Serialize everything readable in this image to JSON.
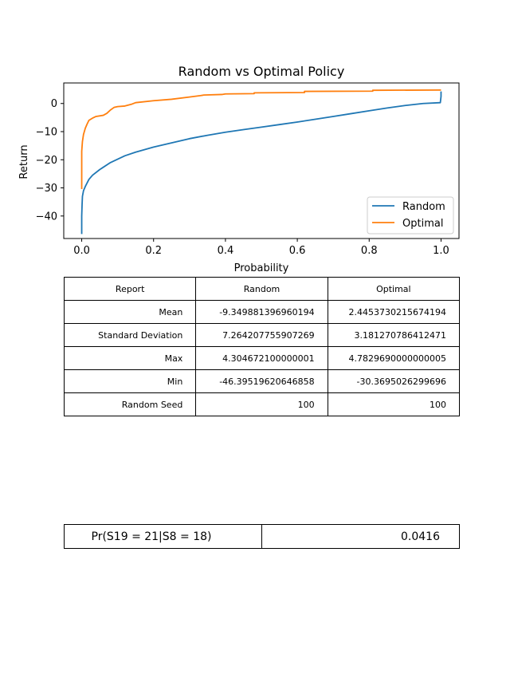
{
  "chart_data": {
    "type": "line",
    "title": "Random vs Optimal Policy",
    "xlabel": "Probability",
    "ylabel": "Return",
    "xlim": [
      -0.05,
      1.05
    ],
    "ylim": [
      -48.0,
      7.3
    ],
    "xticks": [
      "0.0",
      "0.2",
      "0.4",
      "0.6",
      "0.8",
      "1.0"
    ],
    "yticks": [
      "0",
      "-10",
      "-20",
      "-30",
      "-40"
    ],
    "legend_position": "lower-right",
    "series": [
      {
        "name": "Random",
        "color": "#1f77b4",
        "x": [
          0.0,
          0.0,
          0.001,
          0.002,
          0.005,
          0.01,
          0.02,
          0.03,
          0.05,
          0.08,
          0.1,
          0.12,
          0.15,
          0.2,
          0.25,
          0.3,
          0.35,
          0.4,
          0.45,
          0.5,
          0.55,
          0.6,
          0.65,
          0.7,
          0.75,
          0.8,
          0.85,
          0.9,
          0.95,
          0.998,
          1.0,
          1.0
        ],
        "y": [
          -46.4,
          -40.0,
          -36.0,
          -33.0,
          -31.0,
          -29.5,
          -27.0,
          -25.5,
          -23.5,
          -21.0,
          -19.8,
          -18.6,
          -17.3,
          -15.5,
          -14.0,
          -12.5,
          -11.3,
          -10.2,
          -9.3,
          -8.4,
          -7.5,
          -6.6,
          -5.6,
          -4.6,
          -3.6,
          -2.6,
          -1.6,
          -0.7,
          0.0,
          0.3,
          2.5,
          4.3
        ]
      },
      {
        "name": "Optimal",
        "color": "#ff7f0e",
        "x": [
          0.0,
          0.0,
          0.002,
          0.005,
          0.01,
          0.015,
          0.02,
          0.03,
          0.04,
          0.06,
          0.07,
          0.08,
          0.09,
          0.1,
          0.12,
          0.14,
          0.15,
          0.2,
          0.25,
          0.3,
          0.33,
          0.34,
          0.39,
          0.4,
          0.48,
          0.48,
          0.62,
          0.62,
          0.81,
          0.81,
          1.0
        ],
        "y": [
          -30.4,
          -17.0,
          -13.5,
          -11.0,
          -8.8,
          -7.3,
          -6.0,
          -5.2,
          -4.6,
          -4.2,
          -3.5,
          -2.3,
          -1.4,
          -1.1,
          -0.9,
          -0.2,
          0.3,
          1.0,
          1.5,
          2.3,
          2.8,
          3.0,
          3.2,
          3.4,
          3.5,
          3.8,
          3.9,
          4.3,
          4.4,
          4.7,
          4.78
        ]
      }
    ]
  },
  "stats_table": {
    "header": [
      "Report",
      "Random",
      "Optimal"
    ],
    "rows": [
      [
        "Mean",
        "-9.349881396960194",
        "2.4453730215674194"
      ],
      [
        "Standard Deviation",
        "7.264207755907269",
        "3.181270786412471"
      ],
      [
        "Max",
        "4.304672100000001",
        "4.7829690000000005"
      ],
      [
        "Min",
        "-46.39519620646858",
        "-30.3695026299696"
      ],
      [
        "Random Seed",
        "100",
        "100"
      ]
    ]
  },
  "probability_table": {
    "label": "Pr(S19 = 21|S8 = 18)",
    "value": "0.0416"
  }
}
